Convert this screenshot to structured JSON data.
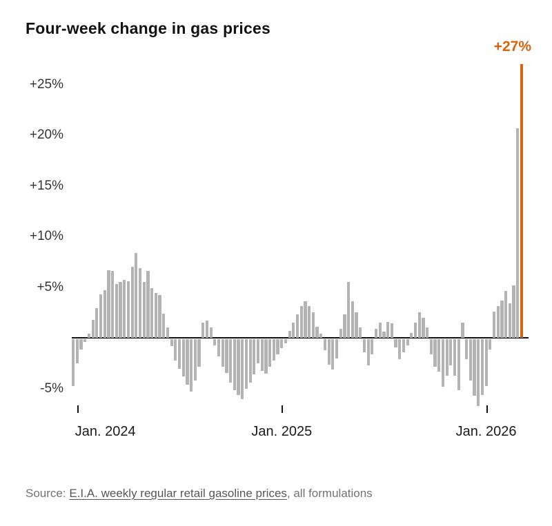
{
  "title": "Four-week change in gas prices",
  "source": {
    "prefix": "Source: ",
    "link_text": "E.I.A. weekly regular retail gasoline prices",
    "suffix": ", all formulations"
  },
  "chart_data": {
    "type": "bar",
    "title": "Four-week change in gas prices",
    "unit": "percent change over four weeks",
    "annotation": "+27%",
    "bar_color": "#b3b3b3",
    "highlight_last": true,
    "highlight_color": "#d9620c",
    "baseline_color": "#121212",
    "grid": false,
    "legend": "none",
    "ylim": [
      -7,
      28
    ],
    "y_ticks": [
      {
        "label": "+25%",
        "value": 25
      },
      {
        "label": "+20%",
        "value": 20
      },
      {
        "label": "+15%",
        "value": 15
      },
      {
        "label": "+10%",
        "value": 10
      },
      {
        "label": "+5%",
        "value": 5
      },
      {
        "label": "-5%",
        "value": -5
      }
    ],
    "x_ticks": [
      {
        "label": "Jan. 2024",
        "index": 1
      },
      {
        "label": "Jan. 2025",
        "index": 53
      },
      {
        "label": "Jan. 2026",
        "index": 105
      }
    ],
    "values": [
      -4.6,
      -2.4,
      -1.0,
      -0.3,
      0.4,
      1.8,
      2.9,
      4.3,
      4.7,
      6.7,
      6.6,
      5.3,
      5.5,
      5.7,
      5.6,
      7.0,
      8.4,
      6.9,
      5.5,
      6.6,
      4.9,
      4.4,
      4.2,
      2.4,
      1.0,
      -0.7,
      -2.1,
      -2.9,
      -3.7,
      -4.5,
      -5.2,
      -4.1,
      -2.7,
      1.5,
      1.7,
      1.0,
      -0.6,
      -1.7,
      -2.7,
      -3.3,
      -4.3,
      -5.0,
      -5.5,
      -5.9,
      -4.9,
      -4.3,
      -3.5,
      -2.4,
      -3.1,
      -3.4,
      -2.7,
      -2.1,
      -1.5,
      -0.9,
      -0.4,
      0.7,
      1.5,
      2.3,
      3.1,
      3.6,
      3.1,
      2.5,
      1.1,
      0.4,
      -1.1,
      -2.5,
      -3.0,
      -1.9,
      0.9,
      2.3,
      5.5,
      3.6,
      2.5,
      1.0,
      -1.3,
      -2.6,
      -1.5,
      0.9,
      1.5,
      0.6,
      1.6,
      1.4,
      -0.8,
      -2.0,
      -1.3,
      -0.6,
      0.5,
      1.5,
      2.5,
      2.0,
      1.0,
      -1.5,
      -2.7,
      -3.2,
      -4.7,
      -3.6,
      -2.6,
      -3.6,
      -5.0,
      1.5,
      -2.0,
      -4.1,
      -5.6,
      -6.6,
      -5.5,
      -4.6,
      -1.0,
      2.6,
      3.1,
      3.7,
      4.6,
      3.4,
      5.2,
      20.7,
      27.0
    ]
  }
}
